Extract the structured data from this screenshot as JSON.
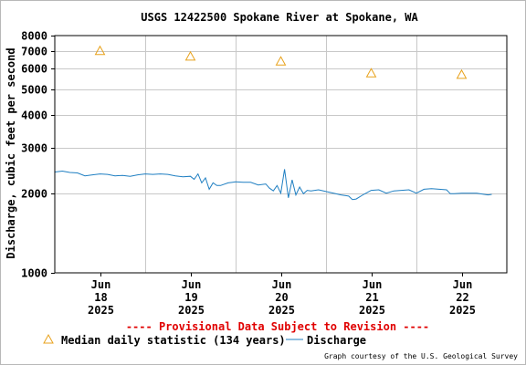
{
  "chart_data": {
    "type": "line",
    "title": "USGS 12422500 Spokane River at Spokane, WA",
    "ylabel": "Discharge, cubic feet per second",
    "y_scale": "log",
    "ylim": [
      1000,
      8000
    ],
    "y_ticks": [
      1000,
      2000,
      3000,
      4000,
      5000,
      6000,
      7000,
      8000
    ],
    "xlim": [
      "2025-06-17T12:00",
      "2025-06-22T12:00"
    ],
    "x_ticks": [
      {
        "date": "2025-06-18T00:00",
        "month": "Jun",
        "day": "18",
        "year": "2025"
      },
      {
        "date": "2025-06-19T00:00",
        "month": "Jun",
        "day": "19",
        "year": "2025"
      },
      {
        "date": "2025-06-20T00:00",
        "month": "Jun",
        "day": "20",
        "year": "2025"
      },
      {
        "date": "2025-06-21T00:00",
        "month": "Jun",
        "day": "21",
        "year": "2025"
      },
      {
        "date": "2025-06-22T00:00",
        "month": "Jun",
        "day": "22",
        "year": "2025"
      }
    ],
    "series": [
      {
        "name": "Median daily statistic (134 years)",
        "kind": "marker",
        "marker": "triangle",
        "color": "#e8a21c",
        "points": [
          {
            "x": "2025-06-18T00:00",
            "y": 7000
          },
          {
            "x": "2025-06-19T00:00",
            "y": 6660
          },
          {
            "x": "2025-06-20T00:00",
            "y": 6380
          },
          {
            "x": "2025-06-21T00:00",
            "y": 5750
          },
          {
            "x": "2025-06-22T00:00",
            "y": 5680
          }
        ]
      },
      {
        "name": "Discharge",
        "kind": "line",
        "color": "#1f7fc2",
        "points": [
          {
            "x": "2025-06-17T12:00",
            "y": 2420
          },
          {
            "x": "2025-06-17T14:00",
            "y": 2440
          },
          {
            "x": "2025-06-17T16:00",
            "y": 2410
          },
          {
            "x": "2025-06-17T18:00",
            "y": 2400
          },
          {
            "x": "2025-06-17T20:00",
            "y": 2340
          },
          {
            "x": "2025-06-17T22:00",
            "y": 2360
          },
          {
            "x": "2025-06-18T00:00",
            "y": 2380
          },
          {
            "x": "2025-06-18T02:00",
            "y": 2370
          },
          {
            "x": "2025-06-18T04:00",
            "y": 2340
          },
          {
            "x": "2025-06-18T06:00",
            "y": 2350
          },
          {
            "x": "2025-06-18T08:00",
            "y": 2330
          },
          {
            "x": "2025-06-18T10:00",
            "y": 2360
          },
          {
            "x": "2025-06-18T12:00",
            "y": 2380
          },
          {
            "x": "2025-06-18T14:00",
            "y": 2370
          },
          {
            "x": "2025-06-18T16:00",
            "y": 2380
          },
          {
            "x": "2025-06-18T18:00",
            "y": 2370
          },
          {
            "x": "2025-06-18T20:00",
            "y": 2340
          },
          {
            "x": "2025-06-18T22:00",
            "y": 2320
          },
          {
            "x": "2025-06-19T00:00",
            "y": 2330
          },
          {
            "x": "2025-06-19T01:00",
            "y": 2270
          },
          {
            "x": "2025-06-19T02:00",
            "y": 2380
          },
          {
            "x": "2025-06-19T03:00",
            "y": 2200
          },
          {
            "x": "2025-06-19T04:00",
            "y": 2300
          },
          {
            "x": "2025-06-19T05:00",
            "y": 2080
          },
          {
            "x": "2025-06-19T06:00",
            "y": 2200
          },
          {
            "x": "2025-06-19T07:00",
            "y": 2150
          },
          {
            "x": "2025-06-19T08:00",
            "y": 2150
          },
          {
            "x": "2025-06-19T10:00",
            "y": 2200
          },
          {
            "x": "2025-06-19T12:00",
            "y": 2220
          },
          {
            "x": "2025-06-19T14:00",
            "y": 2210
          },
          {
            "x": "2025-06-19T16:00",
            "y": 2210
          },
          {
            "x": "2025-06-19T18:00",
            "y": 2160
          },
          {
            "x": "2025-06-19T20:00",
            "y": 2180
          },
          {
            "x": "2025-06-19T21:00",
            "y": 2100
          },
          {
            "x": "2025-06-19T22:00",
            "y": 2050
          },
          {
            "x": "2025-06-19T23:00",
            "y": 2150
          },
          {
            "x": "2025-06-20T00:00",
            "y": 2010
          },
          {
            "x": "2025-06-20T01:00",
            "y": 2480
          },
          {
            "x": "2025-06-20T02:00",
            "y": 1930
          },
          {
            "x": "2025-06-20T03:00",
            "y": 2260
          },
          {
            "x": "2025-06-20T04:00",
            "y": 1980
          },
          {
            "x": "2025-06-20T05:00",
            "y": 2120
          },
          {
            "x": "2025-06-20T06:00",
            "y": 2000
          },
          {
            "x": "2025-06-20T07:00",
            "y": 2060
          },
          {
            "x": "2025-06-20T08:00",
            "y": 2050
          },
          {
            "x": "2025-06-20T10:00",
            "y": 2070
          },
          {
            "x": "2025-06-20T12:00",
            "y": 2040
          },
          {
            "x": "2025-06-20T14:00",
            "y": 2010
          },
          {
            "x": "2025-06-20T16:00",
            "y": 1980
          },
          {
            "x": "2025-06-20T18:00",
            "y": 1960
          },
          {
            "x": "2025-06-20T19:00",
            "y": 1900
          },
          {
            "x": "2025-06-20T20:00",
            "y": 1910
          },
          {
            "x": "2025-06-20T22:00",
            "y": 1990
          },
          {
            "x": "2025-06-21T00:00",
            "y": 2060
          },
          {
            "x": "2025-06-21T02:00",
            "y": 2070
          },
          {
            "x": "2025-06-21T04:00",
            "y": 2010
          },
          {
            "x": "2025-06-21T06:00",
            "y": 2050
          },
          {
            "x": "2025-06-21T08:00",
            "y": 2060
          },
          {
            "x": "2025-06-21T10:00",
            "y": 2070
          },
          {
            "x": "2025-06-21T12:00",
            "y": 2010
          },
          {
            "x": "2025-06-21T14:00",
            "y": 2080
          },
          {
            "x": "2025-06-21T16:00",
            "y": 2090
          },
          {
            "x": "2025-06-21T18:00",
            "y": 2080
          },
          {
            "x": "2025-06-21T20:00",
            "y": 2070
          },
          {
            "x": "2025-06-21T21:00",
            "y": 2000
          },
          {
            "x": "2025-06-21T22:00",
            "y": 2000
          },
          {
            "x": "2025-06-22T00:00",
            "y": 2010
          },
          {
            "x": "2025-06-22T02:00",
            "y": 2010
          },
          {
            "x": "2025-06-22T04:00",
            "y": 2010
          },
          {
            "x": "2025-06-22T06:00",
            "y": 1990
          },
          {
            "x": "2025-06-22T07:00",
            "y": 1980
          },
          {
            "x": "2025-06-22T08:00",
            "y": 1990
          }
        ]
      }
    ],
    "grid": true
  },
  "notice": "---- Provisional Data Subject to Revision ----",
  "legend": {
    "median_label": "Median daily statistic (134 years)",
    "discharge_label": "Discharge"
  },
  "credit": "Graph courtesy of the U.S. Geological Survey",
  "colors": {
    "notice": "#e00000",
    "grid": "#c8c8c8",
    "axis": "#000000",
    "discharge": "#1f7fc2",
    "median": "#e8a21c"
  }
}
